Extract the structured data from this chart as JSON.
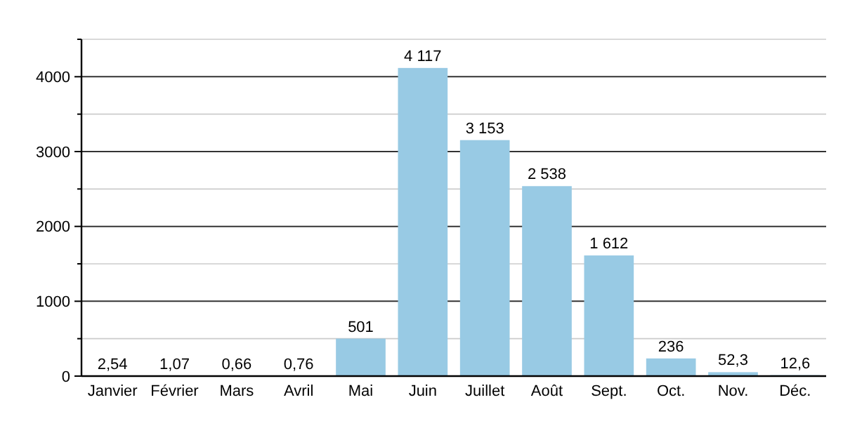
{
  "chart_data": {
    "type": "bar",
    "categories": [
      "Janvier",
      "Février",
      "Mars",
      "Avril",
      "Mai",
      "Juin",
      "Juillet",
      "Août",
      "Sept.",
      "Oct.",
      "Nov.",
      "Déc."
    ],
    "values": [
      2.54,
      1.07,
      0.66,
      0.76,
      501,
      4117,
      3153,
      2538,
      1612,
      236,
      52.3,
      12.6
    ],
    "value_labels": [
      "2,54",
      "1,07",
      "0,66",
      "0,76",
      "501",
      "4 117",
      "3 153",
      "2 538",
      "1 612",
      "236",
      "52,3",
      "12,6"
    ],
    "color": "#98cae4",
    "ylim": [
      0,
      4500
    ],
    "yticks": [
      0,
      {
        "value": 500,
        "label": null
      },
      1000,
      {
        "value": 1500,
        "label": null
      },
      2000,
      {
        "value": 2500,
        "label": null
      },
      3000,
      {
        "value": 3500,
        "label": null
      },
      4000,
      {
        "value": 4500,
        "label": null
      }
    ],
    "grid": "y"
  }
}
